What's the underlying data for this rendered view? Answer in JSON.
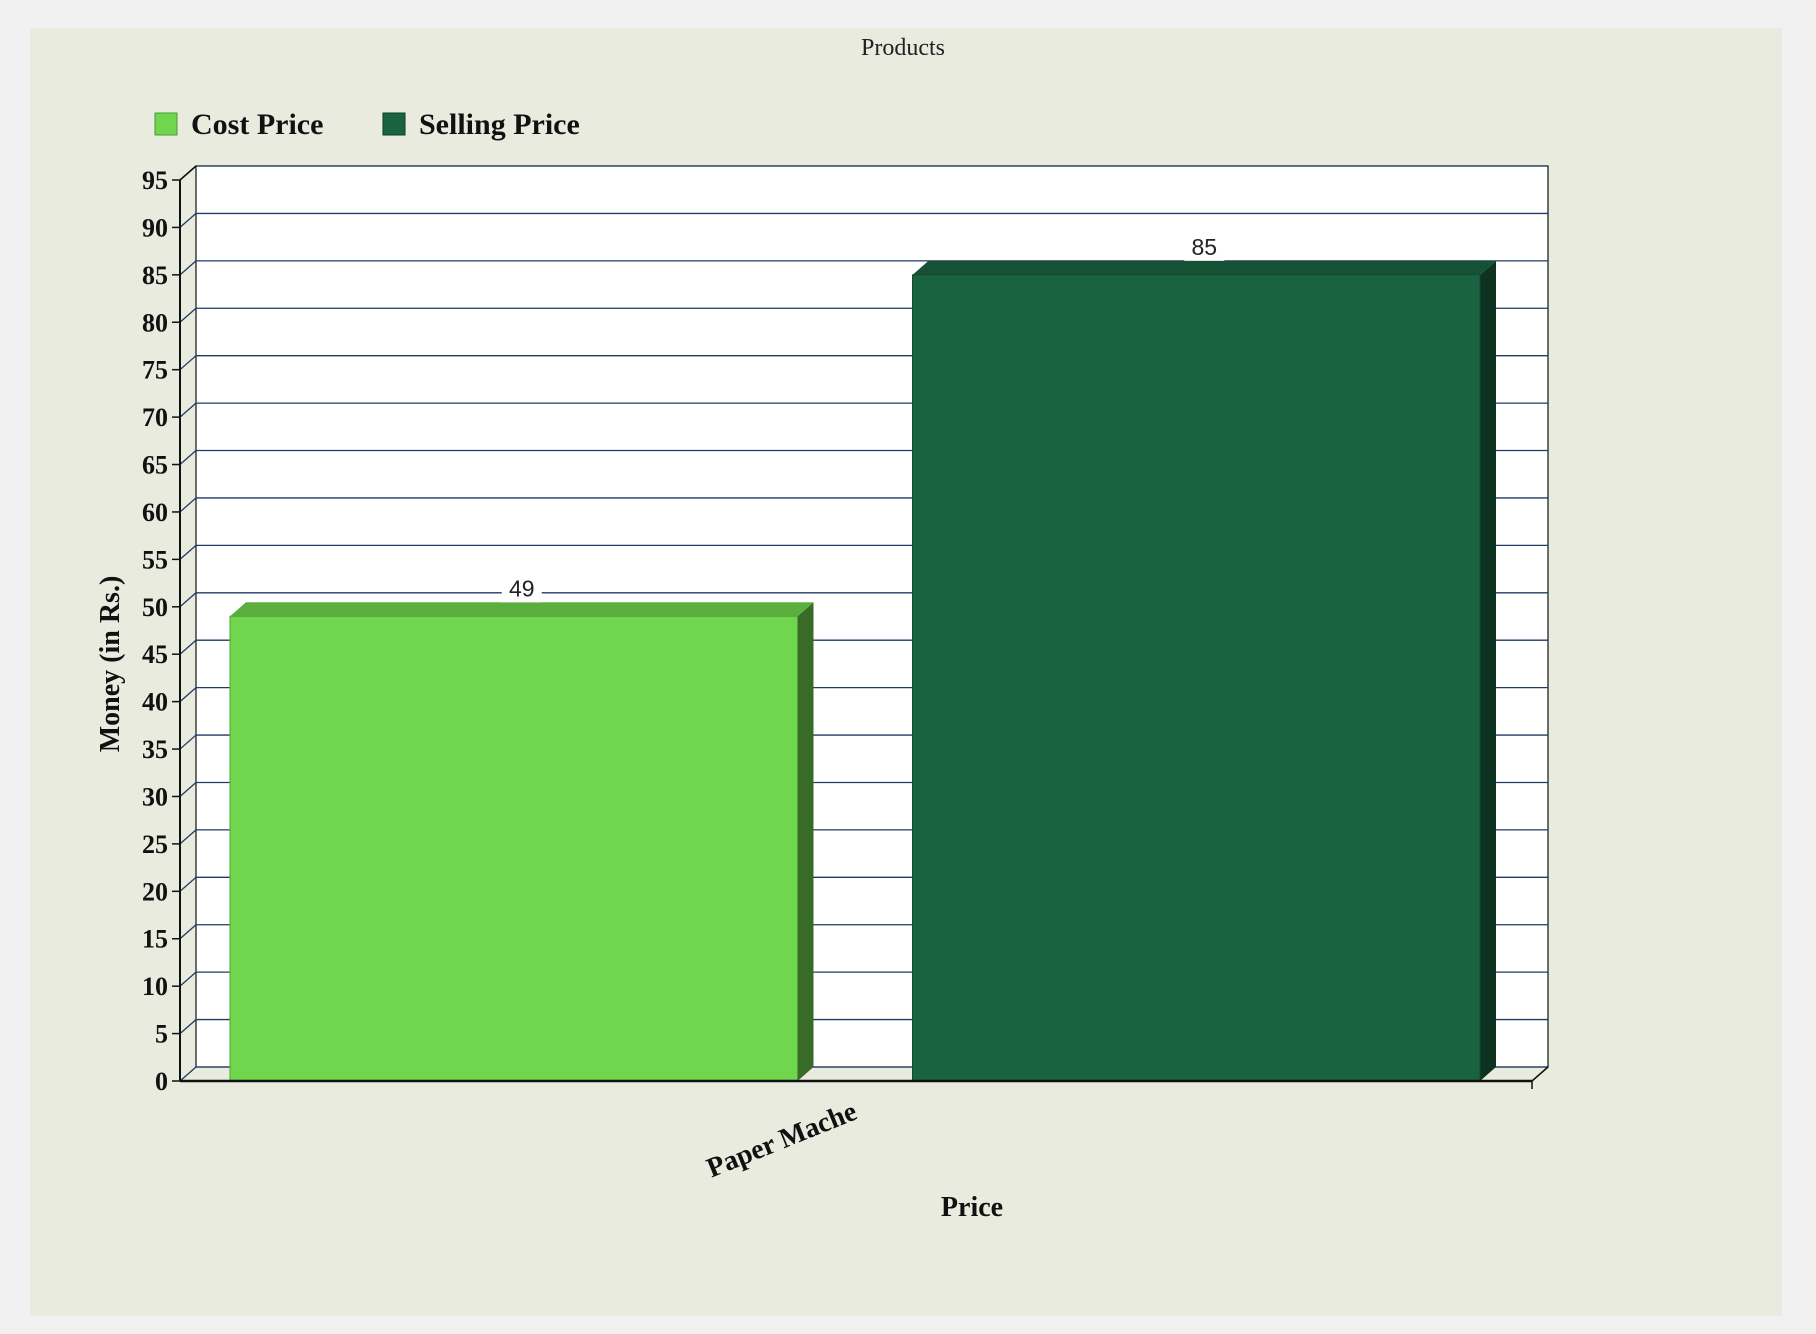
{
  "chart_data": {
    "type": "bar",
    "title": "Products",
    "categories": [
      "Paper Mache"
    ],
    "series": [
      {
        "name": "Cost Price",
        "values": [
          49
        ],
        "color": "#6fd64d"
      },
      {
        "name": "Selling Price",
        "values": [
          85
        ],
        "color": "#1a6340"
      }
    ],
    "xlabel": "Price",
    "ylabel": "Money (in Rs.)",
    "ylim": [
      0,
      95
    ],
    "yticks": [
      0,
      5,
      10,
      15,
      20,
      25,
      30,
      35,
      40,
      45,
      50,
      55,
      60,
      65,
      70,
      75,
      80,
      85,
      90,
      95
    ],
    "grid": true,
    "legend_position": "top-left",
    "three_d": true
  }
}
